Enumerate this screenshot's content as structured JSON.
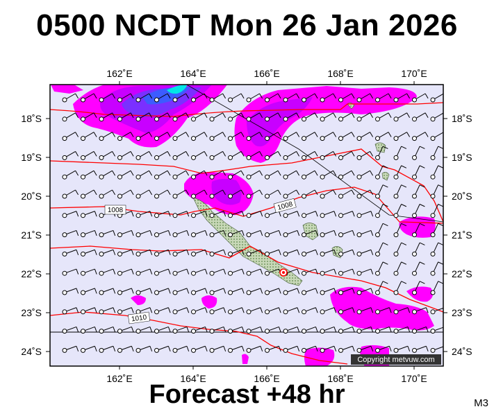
{
  "header": {
    "title": "0500 NCDT Mon 26 Jan 2026"
  },
  "footer": {
    "forecast": "Forecast +48 hr",
    "model": "M3"
  },
  "map": {
    "lon_labels": [
      "162˚E",
      "164˚E",
      "166˚E",
      "168˚E",
      "170˚E"
    ],
    "lat_labels": [
      "18˚S",
      "19˚S",
      "20˚S",
      "21˚S",
      "22˚S",
      "23˚S",
      "24˚S"
    ],
    "isobar_labels": [
      "1008",
      "1008",
      "1010"
    ],
    "copyright": "Copyright metvuw.com",
    "colors": {
      "ocean": "#e6e6fa",
      "rain_magenta": "#ff00ff",
      "rain_violet": "#b400ff",
      "rain_blue": "#5a3cff",
      "rain_cyan": "#00e6e6",
      "isobar": "#ff0000",
      "land": "#c8d8b8"
    }
  }
}
